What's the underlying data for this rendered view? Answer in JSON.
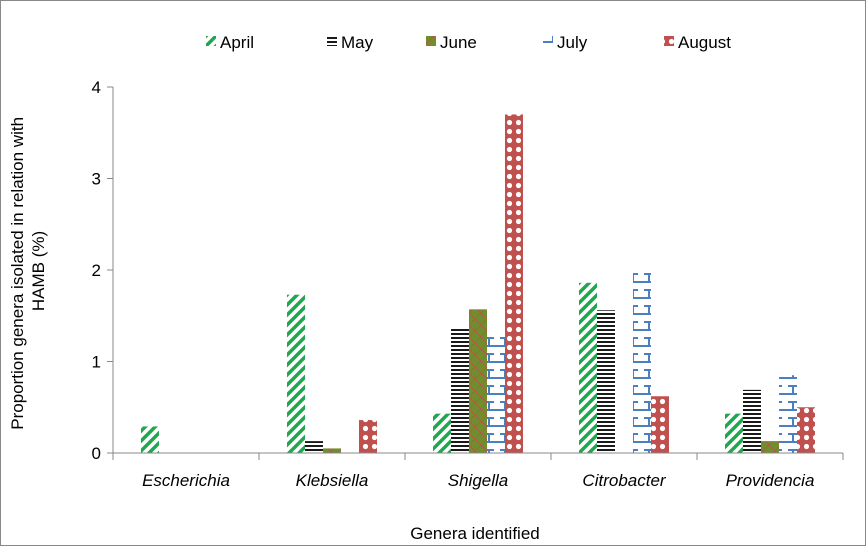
{
  "chart_data": {
    "type": "bar",
    "title": "",
    "xlabel": "Genera  identified",
    "ylabel": "Proportion genera isolated in relation with HAMB (%)",
    "ylabel_lines": [
      "Proportion genera isolated in relation with",
      "HAMB (%)"
    ],
    "ylim": [
      0,
      4
    ],
    "yticks": [
      "0",
      "1",
      "2",
      "3",
      "4"
    ],
    "grid": false,
    "legend_position": "top",
    "categories": [
      "Escherichia",
      "Klebsiella",
      "Shigella",
      "Citrobacter",
      "Providencia"
    ],
    "series": [
      {
        "name": "April",
        "color": "#1ea84e",
        "pattern": "diagonal-stripes",
        "values": [
          0.29,
          1.73,
          0.43,
          1.86,
          0.43
        ]
      },
      {
        "name": "May",
        "color": "#1a1a1a",
        "pattern": "horizontal-stripes",
        "values": [
          0,
          0.13,
          1.37,
          1.56,
          0.69
        ]
      },
      {
        "name": "June",
        "color": "#6e8f2c",
        "pattern": "solid-cross",
        "values": [
          0,
          0.05,
          1.57,
          0,
          0.13
        ]
      },
      {
        "name": "July",
        "color": "#4a7fc1",
        "pattern": "i-beam",
        "values": [
          0,
          0,
          1.32,
          1.99,
          0.85
        ]
      },
      {
        "name": "August",
        "color": "#c0504d",
        "pattern": "dots",
        "values": [
          0,
          0.36,
          3.7,
          0.62,
          0.5
        ]
      }
    ]
  }
}
